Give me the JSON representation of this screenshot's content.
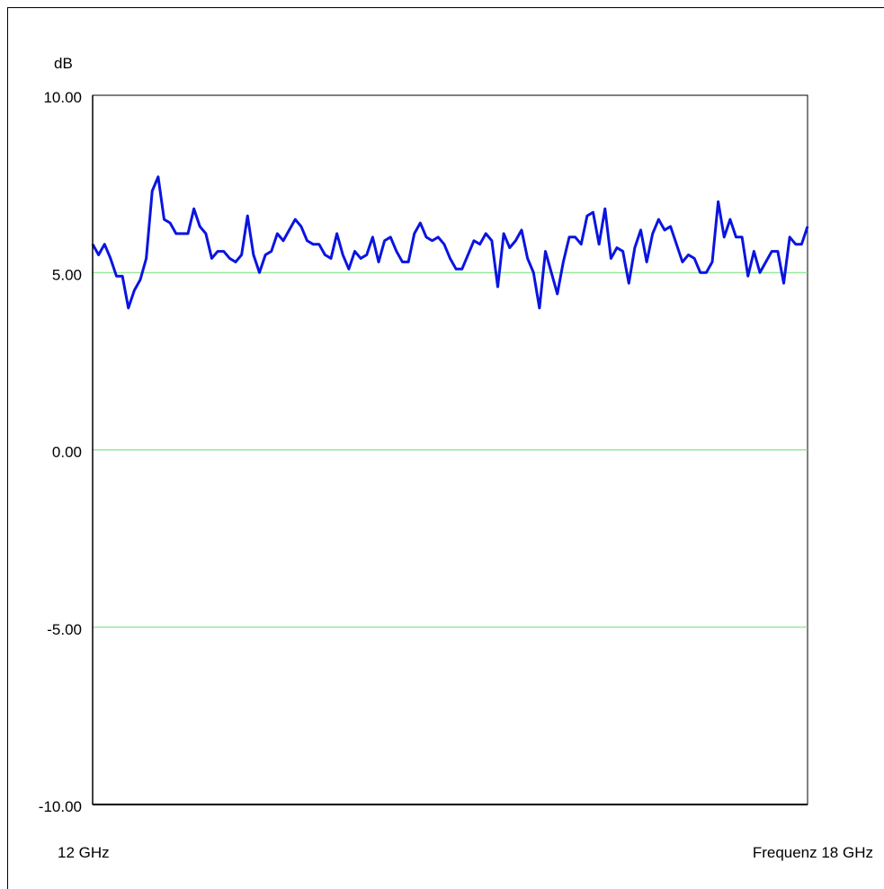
{
  "chart_data": {
    "type": "line",
    "ylabel": "dB",
    "xlabel": "Frequenz",
    "x_start_label": "12 GHz",
    "x_end_label": "Frequenz 18 GHz",
    "x_range": [
      12,
      18
    ],
    "x_unit": "GHz",
    "ylim": [
      -10,
      10
    ],
    "y_ticks": [
      10,
      5,
      0,
      -5,
      -10
    ],
    "y_tick_labels": [
      "10.00",
      "5.00",
      "0.00",
      "-5.00",
      "-10.00"
    ],
    "grid": true,
    "grid_lines": [
      5,
      0,
      -5
    ],
    "colors": {
      "line": "#0a14e0",
      "grid": "#6fe06f",
      "axis": "#000000"
    },
    "series": [
      {
        "values": [
          5.8,
          5.5,
          5.8,
          5.4,
          4.9,
          4.9,
          4.0,
          4.5,
          4.8,
          5.4,
          7.3,
          7.7,
          6.5,
          6.4,
          6.1,
          6.1,
          6.1,
          6.8,
          6.3,
          6.1,
          5.4,
          5.6,
          5.6,
          5.4,
          5.3,
          5.5,
          6.6,
          5.5,
          5.0,
          5.5,
          5.6,
          6.1,
          5.9,
          6.2,
          6.5,
          6.3,
          5.9,
          5.8,
          5.8,
          5.5,
          5.4,
          6.1,
          5.5,
          5.1,
          5.6,
          5.4,
          5.5,
          6.0,
          5.3,
          5.9,
          6.0,
          5.6,
          5.3,
          5.3,
          6.1,
          6.4,
          6.0,
          5.9,
          6.0,
          5.8,
          5.4,
          5.1,
          5.1,
          5.5,
          5.9,
          5.8,
          6.1,
          5.9,
          4.6,
          6.1,
          5.7,
          5.9,
          6.2,
          5.4,
          5.0,
          4.0,
          5.6,
          5.0,
          4.4,
          5.3,
          6.0,
          6.0,
          5.8,
          6.6,
          6.7,
          5.8,
          6.8,
          5.4,
          5.7,
          5.6,
          4.7,
          5.7,
          6.2,
          5.3,
          6.1,
          6.5,
          6.2,
          6.3,
          5.8,
          5.3,
          5.5,
          5.4,
          5.0,
          5.0,
          5.3,
          7.0,
          6.0,
          6.5,
          6.0,
          6.0,
          4.9,
          5.6,
          5.0,
          5.3,
          5.6,
          5.6,
          4.7,
          6.0,
          5.8,
          5.8,
          6.3
        ]
      }
    ]
  }
}
